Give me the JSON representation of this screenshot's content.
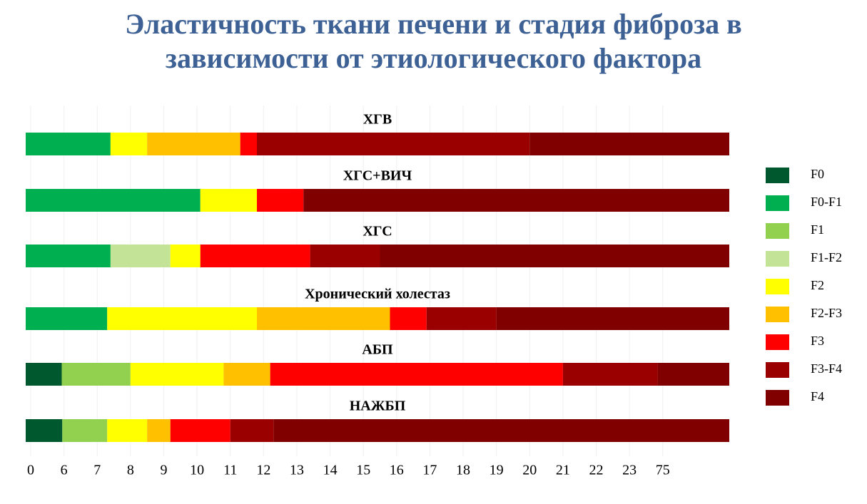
{
  "chart_data": {
    "type": "stacked_barh",
    "title": "Эластичность ткани печени и стадия фиброза в зависимости от этиологического фактора",
    "categories": [
      "ХГВ",
      "ХГС+ВИЧ",
      "ХГС",
      "Хронический холестаз",
      "АБП",
      "НАЖБП"
    ],
    "series": [
      {
        "name": "F0",
        "color": "#00582f",
        "values": [
          null,
          null,
          null,
          null,
          5.6,
          5.7
        ]
      },
      {
        "name": "F0-F1",
        "color": "#00b050",
        "values": [
          7.4,
          10.1,
          7.4,
          7.3,
          null,
          null
        ]
      },
      {
        "name": "F1",
        "color": "#92d050",
        "values": [
          null,
          null,
          null,
          null,
          2.4,
          1.6
        ]
      },
      {
        "name": "F1-F2",
        "color": "#c3e396",
        "values": [
          null,
          null,
          1.8,
          null,
          null,
          null
        ]
      },
      {
        "name": "F2",
        "color": "#ffff00",
        "values": [
          1.1,
          1.7,
          0.9,
          4.5,
          2.8,
          1.2
        ]
      },
      {
        "name": "F2-F3",
        "color": "#ffc000",
        "values": [
          2.8,
          null,
          null,
          4,
          1.4,
          0.7
        ]
      },
      {
        "name": "F3",
        "color": "#ff0000",
        "values": [
          0.5,
          1.4,
          3.3,
          1.1,
          8.8,
          1.8
        ]
      },
      {
        "name": "F3-F4",
        "color": "#9b0000",
        "values": [
          8.2,
          null,
          2.1,
          2.1,
          46,
          1.3
        ]
      },
      {
        "name": "F4",
        "color": "#800000",
        "values": [
          80,
          86.8,
          84.5,
          81,
          33,
          87.7
        ]
      }
    ],
    "xlim": [
      0,
      100
    ],
    "xticks": [
      0,
      6,
      7,
      8,
      9,
      10,
      11,
      12,
      13,
      14,
      15,
      16,
      17,
      18,
      19,
      20,
      21,
      22,
      23,
      75
    ],
    "grid": true
  }
}
